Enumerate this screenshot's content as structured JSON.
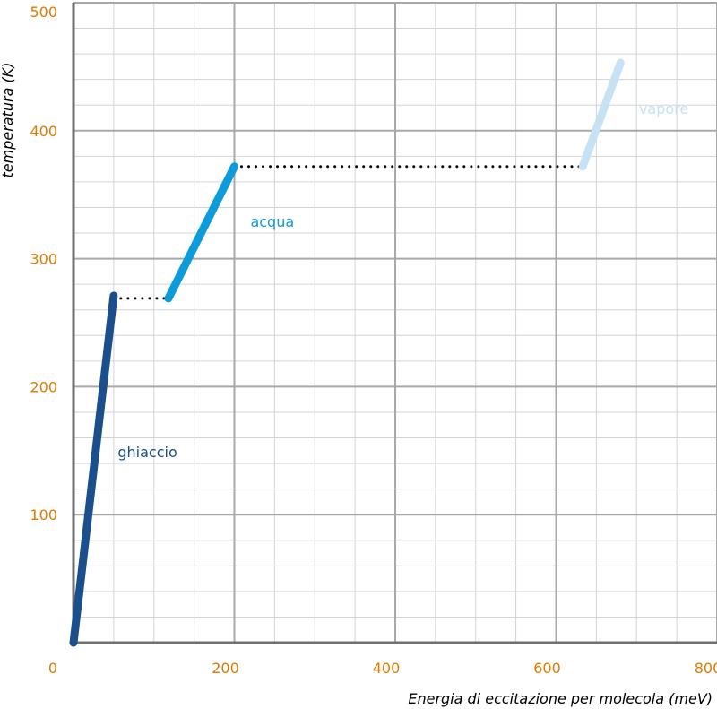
{
  "chart_data": {
    "type": "line",
    "title": "",
    "xlabel": "Energia di eccitazione per molecola (meV)",
    "ylabel": "temperatura (K)",
    "xlim": [
      0,
      800
    ],
    "ylim": [
      0,
      500
    ],
    "x_major_ticks": [
      0,
      200,
      400,
      600,
      800
    ],
    "x_tick_labels": [
      "0",
      "200",
      "400",
      "600",
      "800"
    ],
    "y_major_ticks": [
      100,
      200,
      300,
      400,
      500
    ],
    "y_tick_labels": [
      "100",
      "200",
      "300",
      "400",
      "500"
    ],
    "x_minor_step": 50,
    "y_minor_step": 20,
    "grid": true,
    "colors": {
      "tick_text": "#E07B00",
      "major_grid": "#A9A9A9",
      "minor_grid": "#D3D3D3",
      "axis": "#707070",
      "ghiaccio": "#1B4F8C",
      "acqua": "#0E9BDA",
      "vapore": "#C6E2F4",
      "transition": "#000000"
    },
    "series": [
      {
        "name": "ghiaccio",
        "color_key": "ghiaccio",
        "x": [
          0,
          50
        ],
        "y": [
          0,
          271
        ]
      },
      {
        "name": "acqua",
        "color_key": "acqua",
        "x": [
          118,
          200
        ],
        "y": [
          269,
          372
        ]
      },
      {
        "name": "vapore",
        "color_key": "vapore",
        "x": [
          633,
          680
        ],
        "y": [
          372,
          453
        ]
      }
    ],
    "transitions": [
      {
        "x": [
          50,
          118
        ],
        "y": [
          269,
          269
        ]
      },
      {
        "x": [
          200,
          633
        ],
        "y": [
          372,
          372
        ]
      }
    ],
    "series_labels": [
      {
        "text": "ghiaccio",
        "color_key": "ghiaccio",
        "x": 55,
        "y": 145
      },
      {
        "text": "acqua",
        "color_key": "acqua",
        "x": 220,
        "y": 325
      },
      {
        "text": "vapore",
        "color_key": "vapore",
        "x": 703,
        "y": 413
      }
    ]
  }
}
